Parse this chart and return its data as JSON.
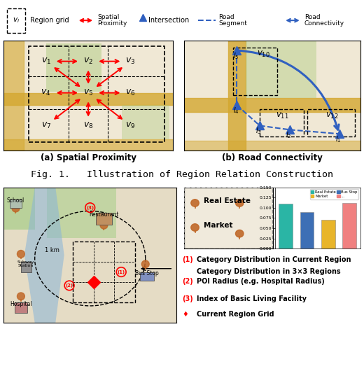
{
  "fig_title": "Fig. 1.   Illustration of Region Relation Construction",
  "sub_a_title": "(a) Spatial Proximity",
  "sub_b_title": "(b) Road Connectivity",
  "bar_values": [
    0.11,
    0.09,
    0.07,
    0.112
  ],
  "bar_colors": [
    "#2ab5a5",
    "#3d6fb5",
    "#e8b52a",
    "#f08080"
  ],
  "ylim": [
    0,
    0.15
  ],
  "yticks": [
    0.0,
    0.025,
    0.05,
    0.075,
    0.1,
    0.125,
    0.15
  ],
  "map_bg": "#f0e8d5",
  "map2_bg": "#e8dfc8",
  "road_color": "#d4a830",
  "green_color": "#a8c878",
  "blue_color": "#3060c0",
  "red_color": "#cc0000",
  "legend_items": [
    {
      "label": "Region grid",
      "type": "dashed_box"
    },
    {
      "label": "Spatial\nProximity",
      "type": "red_arrow"
    },
    {
      "label": "Intersection",
      "type": "blue_triangle"
    },
    {
      "label": "Road\nSegment",
      "type": "blue_dashed"
    },
    {
      "label": "Road\nConnectivity",
      "type": "blue_arrow"
    }
  ],
  "bar_legend_items": [
    {
      "label": "Real Estate",
      "color": "#2ab5a5"
    },
    {
      "label": "Market",
      "color": "#e8b52a"
    },
    {
      "label": "Bus Stop",
      "color": "#3d6fb5"
    },
    {
      "label": "...",
      "color": "#f08080"
    }
  ],
  "ann_texts": [
    {
      "num": "(1)",
      "line1": "Category Distribution in Current Region",
      "line2": "Category Distribution in 3×3 Regions"
    },
    {
      "num": "(2)",
      "line1": "POI Radius (e.g. Hospital Radius)",
      "line2": null
    },
    {
      "num": "(3)",
      "line1": "Index of Basic Living Facility",
      "line2": null
    },
    {
      "num": "♦",
      "line1": "Current Region Grid",
      "line2": null
    }
  ]
}
